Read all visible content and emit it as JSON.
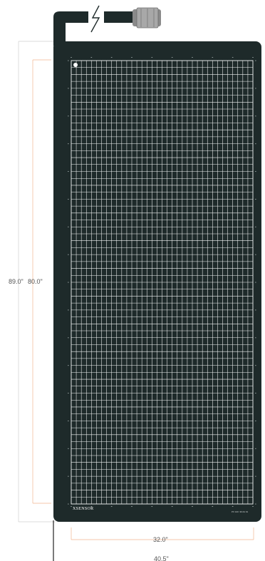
{
  "dimensions": {
    "outer_height": "89.0\"",
    "sensing_height": "80.0\"",
    "sensing_width": "32.0\"",
    "outer_width": "40.5\""
  },
  "brand": "XSENSOR",
  "part_number": "PX 100 :36.64 01",
  "grid": {
    "columns": 36,
    "rows": 64
  },
  "colors": {
    "pad": "#1e2a2a",
    "grid_line": "#f4f6f6",
    "dimension_line": "#f2b58f",
    "extension_line": "#c9c9c9",
    "connector": "#8a8a8a"
  },
  "icons": [
    "lightning-bolt-icon",
    "cable-connector-icon",
    "corner-marker-icon"
  ]
}
